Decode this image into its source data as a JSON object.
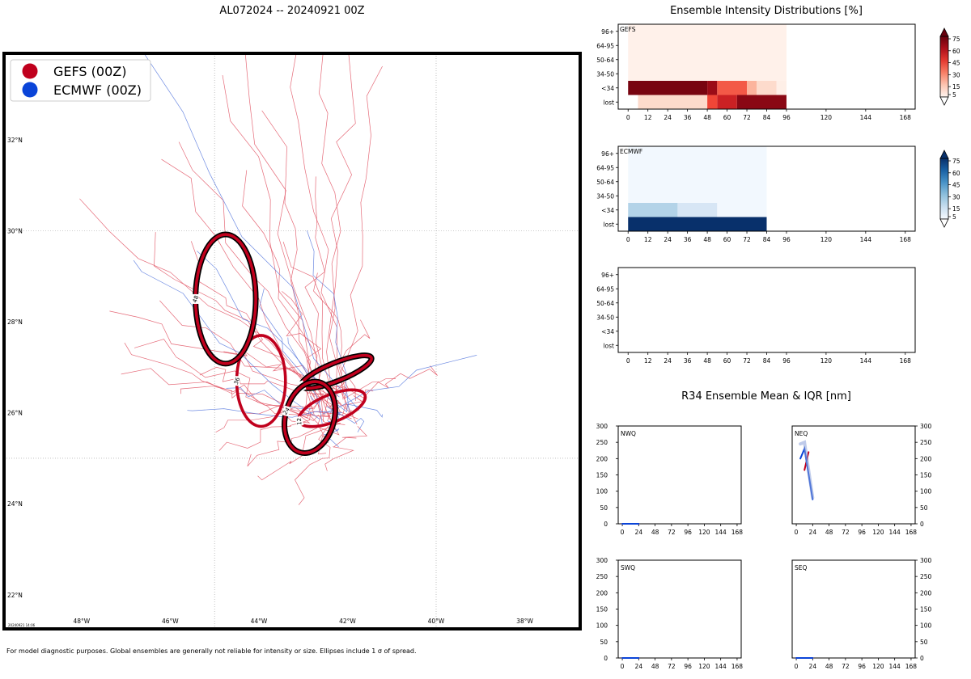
{
  "title": "AL072024 -- 20240921 00Z",
  "footnote": "For model diagnostic purposes. Global ensembles are generally not reliable for intensity or size. Ellipses include 1 σ of spread.",
  "stamp": "20240921 14:06",
  "colors": {
    "gefs": "#c0001d",
    "ecmwf": "#0a44d8",
    "gefs_track": "#e05060",
    "ecmwf_track": "#5577dd"
  },
  "map": {
    "lon_range": [
      -49.75,
      -36.75
    ],
    "lat_range": [
      21.25,
      33.9
    ],
    "lon_ticks": [
      -48,
      -46,
      -44,
      -42,
      -40,
      -38
    ],
    "lon_tick_labels": [
      "48°W",
      "46°W",
      "44°W",
      "42°W",
      "40°W",
      "38°W"
    ],
    "lat_ticks": [
      22,
      24,
      26,
      28,
      30,
      32
    ],
    "lat_tick_labels": [
      "22°N",
      "24°N",
      "26°N",
      "28°N",
      "30°N",
      "32°N"
    ],
    "legend": [
      {
        "label": "GEFS (00Z)",
        "color": "#c0001d"
      },
      {
        "label": "ECMWF (00Z)",
        "color": "#0a44d8"
      }
    ],
    "ellipses": [
      {
        "model": "GEFS",
        "hour": "0",
        "lon": -42.25,
        "lat": 26.9,
        "rx_deg": 0.85,
        "ry_deg": 0.2,
        "angle": -22,
        "outlined": true
      },
      {
        "model": "GEFS",
        "hour": "12",
        "lon": -42.35,
        "lat": 26.1,
        "rx_deg": 0.8,
        "ry_deg": 0.3,
        "angle": -22,
        "outlined": false
      },
      {
        "model": "GEFS",
        "hour": "24",
        "lon": -42.85,
        "lat": 25.9,
        "rx_deg": 0.55,
        "ry_deg": 0.8,
        "angle": 15,
        "outlined": true
      },
      {
        "model": "GEFS",
        "hour": "36",
        "lon": -43.95,
        "lat": 26.7,
        "rx_deg": 0.55,
        "ry_deg": 1.0,
        "angle": 0,
        "outlined": false
      },
      {
        "model": "GEFS",
        "hour": "48",
        "lon": -44.75,
        "lat": 28.5,
        "rx_deg": 0.68,
        "ry_deg": 1.42,
        "angle": 0,
        "outlined": true
      }
    ]
  },
  "chart_data": [
    {
      "type": "heatmap",
      "title": "Ensemble Intensity Distributions [%]",
      "panel": "GEFS",
      "x_ticks": [
        0,
        12,
        24,
        36,
        48,
        60,
        72,
        84,
        96,
        120,
        144,
        168
      ],
      "y_categories": [
        "lost",
        "<34",
        "34-50",
        "50-64",
        "64-95",
        "96+"
      ],
      "cells": [
        {
          "x0": 0,
          "x1": 6,
          "row": "lost",
          "value": 0
        },
        {
          "x0": 6,
          "x1": 48,
          "row": "lost",
          "value": 12
        },
        {
          "x0": 48,
          "x1": 54,
          "row": "lost",
          "value": 55
        },
        {
          "x0": 54,
          "x1": 66,
          "row": "lost",
          "value": 70
        },
        {
          "x0": 66,
          "x1": 96,
          "row": "lost",
          "value": 90
        },
        {
          "x0": 0,
          "x1": 48,
          "row": "<34",
          "value": 95
        },
        {
          "x0": 48,
          "x1": 54,
          "row": "<34",
          "value": 85
        },
        {
          "x0": 54,
          "x1": 72,
          "row": "<34",
          "value": 50
        },
        {
          "x0": 72,
          "x1": 78,
          "row": "<34",
          "value": 25
        },
        {
          "x0": 78,
          "x1": 90,
          "row": "<34",
          "value": 12
        },
        {
          "x0": 90,
          "x1": 96,
          "row": "<34",
          "value": 3
        },
        {
          "x0": 0,
          "x1": 96,
          "row": "34-50",
          "value": 2
        },
        {
          "x0": 0,
          "x1": 96,
          "row": "50-64",
          "value": 2
        },
        {
          "x0": 0,
          "x1": 96,
          "row": "64-95",
          "value": 2
        },
        {
          "x0": 0,
          "x1": 96,
          "row": "96+",
          "value": 2
        }
      ],
      "colorbar_ticks": [
        5,
        15,
        30,
        45,
        60,
        75
      ],
      "colormap": "Reds"
    },
    {
      "type": "heatmap",
      "panel": "ECMWF",
      "x_ticks": [
        0,
        12,
        24,
        36,
        48,
        60,
        72,
        84,
        96,
        120,
        144,
        168
      ],
      "y_categories": [
        "lost",
        "<34",
        "34-50",
        "50-64",
        "64-95",
        "96+"
      ],
      "cells": [
        {
          "x0": 0,
          "x1": 84,
          "row": "lost",
          "value": 100
        },
        {
          "x0": 0,
          "x1": 30,
          "row": "<34",
          "value": 28
        },
        {
          "x0": 30,
          "x1": 54,
          "row": "<34",
          "value": 14
        },
        {
          "x0": 54,
          "x1": 84,
          "row": "<34",
          "value": 2
        },
        {
          "x0": 0,
          "x1": 84,
          "row": "34-50",
          "value": 2
        },
        {
          "x0": 0,
          "x1": 84,
          "row": "50-64",
          "value": 2
        },
        {
          "x0": 0,
          "x1": 84,
          "row": "64-95",
          "value": 2
        },
        {
          "x0": 0,
          "x1": 84,
          "row": "96+",
          "value": 2
        }
      ],
      "colorbar_ticks": [
        5,
        15,
        30,
        45,
        60,
        75
      ],
      "colormap": "Blues"
    },
    {
      "type": "heatmap",
      "panel": "",
      "x_ticks": [
        0,
        12,
        24,
        36,
        48,
        60,
        72,
        84,
        96,
        120,
        144,
        168
      ],
      "y_categories": [
        "lost",
        "<34",
        "34-50",
        "50-64",
        "64-95",
        "96+"
      ],
      "cells": []
    },
    {
      "type": "line",
      "title": "R34 Ensemble Mean & IQR [nm]",
      "x_ticks": [
        0,
        24,
        48,
        72,
        96,
        120,
        144,
        168
      ],
      "y_ticks": [
        0,
        50,
        100,
        150,
        200,
        250,
        300
      ],
      "xlim": [
        -6,
        174
      ],
      "ylim": [
        0,
        300
      ],
      "quadrants": [
        {
          "name": "NWQ",
          "series": [
            {
              "name": "GEFS",
              "x": [
                0,
                12,
                24
              ],
              "y": [
                0,
                0,
                0
              ]
            },
            {
              "name": "ECMWF",
              "x": [
                0,
                12,
                24
              ],
              "y": [
                0,
                0,
                0
              ]
            }
          ]
        },
        {
          "name": "NEQ",
          "series": [
            {
              "name": "GEFS",
              "x": [
                12,
                18
              ],
              "y": [
                165,
                220
              ]
            },
            {
              "name": "ECMWF",
              "x": [
                6,
                12,
                24
              ],
              "y": [
                200,
                230,
                75
              ]
            },
            {
              "name": "ECMWF IQR",
              "x": [
                6,
                12,
                24
              ],
              "y": [
                245,
                250,
                80
              ]
            }
          ]
        },
        {
          "name": "SWQ",
          "series": [
            {
              "name": "GEFS",
              "x": [
                0,
                12,
                24
              ],
              "y": [
                0,
                0,
                0
              ]
            },
            {
              "name": "ECMWF",
              "x": [
                0,
                12,
                24
              ],
              "y": [
                0,
                0,
                0
              ]
            }
          ]
        },
        {
          "name": "SEQ",
          "series": [
            {
              "name": "GEFS",
              "x": [
                0,
                12,
                24
              ],
              "y": [
                0,
                0,
                0
              ]
            },
            {
              "name": "ECMWF",
              "x": [
                0,
                12,
                24
              ],
              "y": [
                0,
                0,
                0
              ]
            }
          ]
        }
      ]
    }
  ]
}
